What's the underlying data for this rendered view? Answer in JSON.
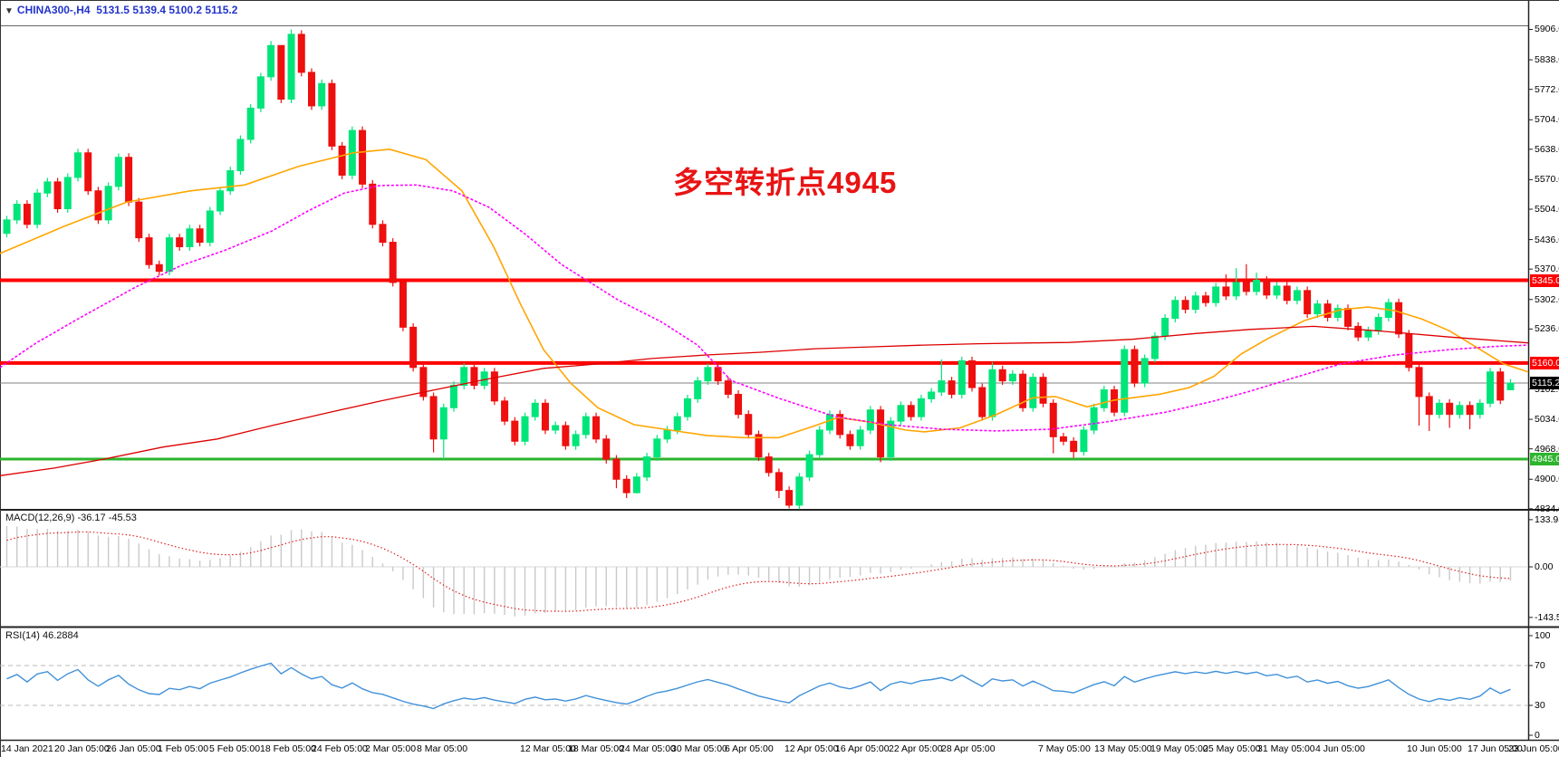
{
  "window": {
    "header": {
      "dropdown_icon": "▼",
      "symbol": "CHINA300-,H4",
      "ohlc_text": "5131.5 5139.4 5100.2 5115.2"
    }
  },
  "annotation": {
    "text": "多空转折点4945",
    "color": "#e81414"
  },
  "colors": {
    "bull": "#00e57a",
    "bear": "#ee0f0f",
    "ma_fast": "#ffa500",
    "ma_mid": "#ff00ff",
    "ma_slow": "#dd0000",
    "hline_red": "#ff0000",
    "hline_green": "#2db52d",
    "price_line": "#808080",
    "macd_hist": "#c9c9c9",
    "macd_signal": "#e02020",
    "rsi_line": "#4191d9",
    "header_text": "#2233cc",
    "annotation_text": "#e81414"
  },
  "main_chart": {
    "y_axis_ticks": [
      "5906.0",
      "5838.0",
      "5772.0",
      "5704.0",
      "5638.0",
      "5570.0",
      "5504.0",
      "5436.0",
      "5370.0",
      "5302.0",
      "5236.0",
      "5102.0",
      "5034.0",
      "4968.0",
      "4900.0",
      "4834.0"
    ],
    "hlines": [
      {
        "price": 5345.0,
        "label": "5345.0",
        "color": "#ff0000",
        "thickness": 4,
        "badge_bg": "#ff0000"
      },
      {
        "price": 5160.0,
        "label": "5160.0",
        "color": "#ff0000",
        "thickness": 4,
        "badge_bg": "#ff0000"
      },
      {
        "price": 4945.0,
        "label": "4945.0",
        "color": "#2db52d",
        "thickness": 3,
        "badge_bg": "#2db52d"
      },
      {
        "price": 5115.2,
        "label": "5115.2",
        "color": "#808080",
        "thickness": 1,
        "badge_bg": "#000000"
      }
    ]
  },
  "macd_panel": {
    "label": "MACD(12,26,9) -36.17 -45.53",
    "ticks": [
      "133.93",
      "0.00",
      "-143.53"
    ],
    "tick_values": [
      133.93,
      0.0,
      -143.53
    ]
  },
  "rsi_panel": {
    "label": "RSI(14) 46.2884",
    "ticks": [
      "100",
      "70",
      "30",
      "0"
    ],
    "tick_values": [
      100,
      70,
      30,
      0
    ],
    "levels": [
      70,
      30
    ]
  },
  "time_axis": {
    "labels": [
      [
        "14 Jan 2021",
        1
      ],
      [
        "20 Jan 05:00",
        60
      ],
      [
        "26 Jan 05:00",
        117
      ],
      [
        "1 Feb 05:00",
        174
      ],
      [
        "5 Feb 05:00",
        231
      ],
      [
        "18 Feb 05:00",
        287
      ],
      [
        "24 Feb 05:00",
        344
      ],
      [
        "2 Mar 05:00",
        403
      ],
      [
        "8 Mar 05:00",
        460
      ],
      [
        "12 Mar 05:00",
        574
      ],
      [
        "18 Mar 05:00",
        627
      ],
      [
        "24 Mar 05:00",
        684
      ],
      [
        "30 Mar 05:00",
        741
      ],
      [
        "6 Apr 05:00",
        800
      ],
      [
        "12 Apr 05:00",
        866
      ],
      [
        "16 Apr 05:00",
        922
      ],
      [
        "22 Apr 05:00",
        981
      ],
      [
        "28 Apr 05:00",
        1039
      ],
      [
        "7 May 05:00",
        1146
      ],
      [
        "13 May 05:00",
        1208
      ],
      [
        "19 May 05:00",
        1270
      ],
      [
        "25 May 05:00",
        1328
      ],
      [
        "31 May 05:00",
        1388
      ],
      [
        "4 Jun 05:00",
        1452
      ],
      [
        "10 Jun 05:00",
        1553
      ],
      [
        "17 Jun 05:00",
        1620
      ],
      [
        "23 Jun 05:00",
        1665
      ]
    ]
  },
  "chart_data": {
    "type": "candlestick",
    "symbol": "CHINA300-",
    "timeframe": "H4",
    "title": "CHINA300-,H4",
    "ohlc_current": {
      "open": 5131.5,
      "high": 5139.4,
      "low": 5100.2,
      "close": 5115.2
    },
    "y_range": [
      4834,
      5906
    ],
    "annotation_level": 4945,
    "first_open": 5450,
    "last_open": 5100.2,
    "closes": [
      5480,
      5515,
      5470,
      5540,
      5565,
      5505,
      5575,
      5630,
      5545,
      5480,
      5555,
      5620,
      5520,
      5440,
      5380,
      5365,
      5440,
      5420,
      5460,
      5430,
      5500,
      5545,
      5590,
      5660,
      5730,
      5800,
      5870,
      5750,
      5895,
      5810,
      5735,
      5785,
      5645,
      5580,
      5680,
      5560,
      5470,
      5430,
      5340,
      5240,
      5150,
      5085,
      4990,
      5060,
      5110,
      5150,
      5110,
      5140,
      5075,
      5030,
      4985,
      5040,
      5070,
      5010,
      5020,
      4975,
      5000,
      5040,
      4990,
      4945,
      4900,
      4870,
      4905,
      4950,
      4990,
      5010,
      5040,
      5080,
      5120,
      5150,
      5120,
      5090,
      5045,
      5000,
      4950,
      4915,
      4875,
      4842,
      4905,
      4955,
      5010,
      5045,
      5000,
      4975,
      5010,
      5055,
      4950,
      5030,
      5065,
      5040,
      5080,
      5095,
      5120,
      5090,
      5165,
      5105,
      5040,
      5145,
      5120,
      5135,
      5060,
      5128,
      5070,
      4995,
      4985,
      4962,
      5010,
      5060,
      5100,
      5050,
      5190,
      5115,
      5170,
      5220,
      5260,
      5300,
      5280,
      5310,
      5295,
      5330,
      5310,
      5340,
      5320,
      5345,
      5312,
      5332,
      5300,
      5322,
      5270,
      5292,
      5262,
      5282,
      5242,
      5218,
      5232,
      5262,
      5295,
      5225,
      5150,
      5085,
      5045,
      5070,
      5045,
      5065,
      5045,
      5070,
      5140,
      5077,
      5115.2
    ],
    "wick_high_overrides": {
      "26": 5880,
      "27": 5850,
      "28": 5906,
      "92": 5168,
      "97": 5162,
      "120": 5358,
      "121": 5372,
      "122": 5381,
      "123": 5362
    },
    "wick_low_overrides": {
      "42": 4960,
      "43": 4945,
      "59": 4935,
      "60": 4880,
      "61": 4858,
      "62": 4868,
      "76": 4858,
      "77": 4835,
      "86": 4938,
      "103": 4958,
      "105": 4948,
      "139": 5020,
      "140": 5008,
      "142": 5015,
      "144": 5012,
      "148": 5100.2
    },
    "moving_averages": [
      {
        "name": "ma-fast-orange",
        "color": "#ffa500",
        "width": 1.6,
        "dash": "",
        "points": [
          [
            0,
            5405
          ],
          [
            70,
            5465
          ],
          [
            140,
            5520
          ],
          [
            210,
            5545
          ],
          [
            270,
            5558
          ],
          [
            330,
            5600
          ],
          [
            390,
            5630
          ],
          [
            430,
            5638
          ],
          [
            470,
            5615
          ],
          [
            510,
            5545
          ],
          [
            545,
            5420
          ],
          [
            575,
            5290
          ],
          [
            600,
            5190
          ],
          [
            630,
            5115
          ],
          [
            660,
            5060
          ],
          [
            700,
            5022
          ],
          [
            740,
            5010
          ],
          [
            780,
            4998
          ],
          [
            820,
            4993
          ],
          [
            860,
            4993
          ],
          [
            900,
            5020
          ],
          [
            925,
            5038
          ],
          [
            960,
            5028
          ],
          [
            1000,
            5010
          ],
          [
            1020,
            5006
          ],
          [
            1060,
            5015
          ],
          [
            1100,
            5045
          ],
          [
            1140,
            5082
          ],
          [
            1165,
            5085
          ],
          [
            1200,
            5062
          ],
          [
            1230,
            5077
          ],
          [
            1280,
            5090
          ],
          [
            1313,
            5105
          ],
          [
            1340,
            5130
          ],
          [
            1370,
            5180
          ],
          [
            1400,
            5215
          ],
          [
            1440,
            5255
          ],
          [
            1480,
            5279
          ],
          [
            1510,
            5285
          ],
          [
            1540,
            5277
          ],
          [
            1570,
            5258
          ],
          [
            1600,
            5232
          ],
          [
            1630,
            5195
          ],
          [
            1660,
            5158
          ],
          [
            1687,
            5140
          ]
        ]
      },
      {
        "name": "ma-mid-magenta",
        "color": "#ff00ff",
        "width": 1.6,
        "dash": "3 2",
        "points": [
          [
            0,
            5150
          ],
          [
            40,
            5205
          ],
          [
            90,
            5263
          ],
          [
            150,
            5330
          ],
          [
            200,
            5378
          ],
          [
            247,
            5411
          ],
          [
            300,
            5455
          ],
          [
            340,
            5500
          ],
          [
            380,
            5540
          ],
          [
            420,
            5557
          ],
          [
            460,
            5558
          ],
          [
            500,
            5545
          ],
          [
            540,
            5508
          ],
          [
            580,
            5448
          ],
          [
            620,
            5380
          ],
          [
            683,
            5300
          ],
          [
            730,
            5252
          ],
          [
            770,
            5200
          ],
          [
            807,
            5121
          ],
          [
            860,
            5081
          ],
          [
            922,
            5040
          ],
          [
            980,
            5022
          ],
          [
            1040,
            5012
          ],
          [
            1100,
            5008
          ],
          [
            1160,
            5012
          ],
          [
            1220,
            5028
          ],
          [
            1287,
            5050
          ],
          [
            1340,
            5075
          ],
          [
            1380,
            5097
          ],
          [
            1430,
            5128
          ],
          [
            1480,
            5158
          ],
          [
            1540,
            5178
          ],
          [
            1600,
            5190
          ],
          [
            1650,
            5197
          ],
          [
            1687,
            5200
          ]
        ]
      },
      {
        "name": "ma-slow-red",
        "color": "#dd0000",
        "width": 1.3,
        "dash": "",
        "points": [
          [
            0,
            4908
          ],
          [
            60,
            4925
          ],
          [
            115,
            4945
          ],
          [
            180,
            4972
          ],
          [
            240,
            4990
          ],
          [
            300,
            5020
          ],
          [
            360,
            5048
          ],
          [
            420,
            5075
          ],
          [
            480,
            5100
          ],
          [
            540,
            5125
          ],
          [
            600,
            5148
          ],
          [
            660,
            5158
          ],
          [
            720,
            5170
          ],
          [
            780,
            5178
          ],
          [
            840,
            5184
          ],
          [
            900,
            5192
          ],
          [
            960,
            5196
          ],
          [
            1020,
            5200
          ],
          [
            1080,
            5203
          ],
          [
            1140,
            5205
          ],
          [
            1180,
            5206
          ],
          [
            1250,
            5213
          ],
          [
            1320,
            5226
          ],
          [
            1380,
            5235
          ],
          [
            1450,
            5242
          ],
          [
            1520,
            5232
          ],
          [
            1600,
            5218
          ],
          [
            1687,
            5205
          ]
        ]
      }
    ],
    "macd": {
      "params": [
        12,
        26,
        9
      ],
      "current_macd": -36.17,
      "current_signal": -45.53,
      "axis": [
        133.93,
        0.0,
        -143.53
      ]
    },
    "rsi": {
      "period": 14,
      "current": 46.2884,
      "levels": [
        70,
        30
      ],
      "axis": [
        100,
        70,
        30,
        0
      ]
    }
  }
}
